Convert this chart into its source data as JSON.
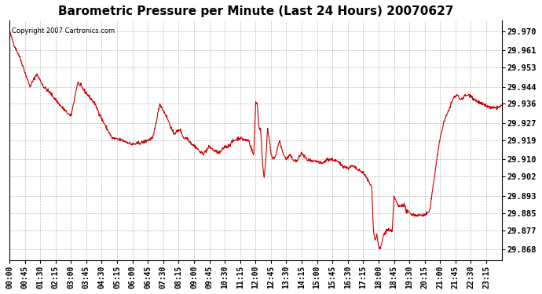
{
  "title": "Barometric Pressure per Minute (Last 24 Hours) 20070627",
  "copyright": "Copyright 2007 Cartronics.com",
  "line_color": "#cc0000",
  "bg_color": "#ffffff",
  "plot_bg_color": "#ffffff",
  "grid_color": "#aaaaaa",
  "yticks": [
    29.868,
    29.877,
    29.885,
    29.893,
    29.902,
    29.91,
    29.919,
    29.927,
    29.936,
    29.944,
    29.953,
    29.961,
    29.97
  ],
  "ylim": [
    29.863,
    29.975
  ],
  "xtick_labels": [
    "00:00",
    "00:45",
    "01:30",
    "02:15",
    "03:00",
    "03:45",
    "04:30",
    "05:15",
    "06:00",
    "06:45",
    "07:30",
    "08:15",
    "09:00",
    "09:45",
    "10:30",
    "11:15",
    "12:00",
    "12:45",
    "13:30",
    "14:15",
    "15:00",
    "15:45",
    "16:30",
    "17:15",
    "18:00",
    "18:45",
    "19:30",
    "20:15",
    "21:00",
    "21:45",
    "22:30",
    "23:15"
  ],
  "waypoints": [
    [
      0,
      29.97
    ],
    [
      15,
      29.963
    ],
    [
      30,
      29.958
    ],
    [
      60,
      29.944
    ],
    [
      80,
      29.95
    ],
    [
      100,
      29.944
    ],
    [
      120,
      29.941
    ],
    [
      150,
      29.935
    ],
    [
      180,
      29.93
    ],
    [
      200,
      29.946
    ],
    [
      230,
      29.94
    ],
    [
      250,
      29.936
    ],
    [
      270,
      29.929
    ],
    [
      300,
      29.92
    ],
    [
      330,
      29.919
    ],
    [
      360,
      29.917
    ],
    [
      390,
      29.918
    ],
    [
      420,
      29.92
    ],
    [
      440,
      29.936
    ],
    [
      460,
      29.93
    ],
    [
      480,
      29.922
    ],
    [
      500,
      29.924
    ],
    [
      510,
      29.92
    ],
    [
      520,
      29.92
    ],
    [
      535,
      29.917
    ],
    [
      545,
      29.916
    ],
    [
      560,
      29.913
    ],
    [
      570,
      29.913
    ],
    [
      585,
      29.916
    ],
    [
      600,
      29.914
    ],
    [
      615,
      29.913
    ],
    [
      630,
      29.916
    ],
    [
      640,
      29.916
    ],
    [
      650,
      29.918
    ],
    [
      660,
      29.919
    ],
    [
      670,
      29.92
    ],
    [
      675,
      29.92
    ],
    [
      690,
      29.919
    ],
    [
      700,
      29.919
    ],
    [
      710,
      29.914
    ],
    [
      715,
      29.912
    ],
    [
      720,
      29.937
    ],
    [
      725,
      29.936
    ],
    [
      730,
      29.925
    ],
    [
      735,
      29.924
    ],
    [
      740,
      29.91
    ],
    [
      745,
      29.901
    ],
    [
      750,
      29.91
    ],
    [
      755,
      29.924
    ],
    [
      760,
      29.92
    ],
    [
      765,
      29.913
    ],
    [
      770,
      29.91
    ],
    [
      780,
      29.912
    ],
    [
      790,
      29.919
    ],
    [
      800,
      29.913
    ],
    [
      810,
      29.91
    ],
    [
      820,
      29.912
    ],
    [
      830,
      29.91
    ],
    [
      840,
      29.909
    ],
    [
      855,
      29.913
    ],
    [
      870,
      29.91
    ],
    [
      885,
      29.909
    ],
    [
      900,
      29.909
    ],
    [
      915,
      29.908
    ],
    [
      930,
      29.91
    ],
    [
      945,
      29.91
    ],
    [
      960,
      29.909
    ],
    [
      975,
      29.907
    ],
    [
      990,
      29.906
    ],
    [
      1005,
      29.907
    ],
    [
      1020,
      29.905
    ],
    [
      1035,
      29.904
    ],
    [
      1050,
      29.9
    ],
    [
      1060,
      29.897
    ],
    [
      1065,
      29.877
    ],
    [
      1070,
      29.872
    ],
    [
      1075,
      29.875
    ],
    [
      1080,
      29.869
    ],
    [
      1085,
      29.868
    ],
    [
      1095,
      29.875
    ],
    [
      1105,
      29.877
    ],
    [
      1110,
      29.877
    ],
    [
      1120,
      29.876
    ],
    [
      1125,
      29.893
    ],
    [
      1135,
      29.889
    ],
    [
      1140,
      29.888
    ],
    [
      1155,
      29.889
    ],
    [
      1160,
      29.886
    ],
    [
      1170,
      29.885
    ],
    [
      1185,
      29.884
    ],
    [
      1200,
      29.884
    ],
    [
      1215,
      29.884
    ],
    [
      1230,
      29.886
    ],
    [
      1250,
      29.91
    ],
    [
      1260,
      29.92
    ],
    [
      1270,
      29.927
    ],
    [
      1275,
      29.929
    ],
    [
      1300,
      29.939
    ],
    [
      1310,
      29.94
    ],
    [
      1320,
      29.938
    ],
    [
      1335,
      29.94
    ],
    [
      1350,
      29.94
    ],
    [
      1360,
      29.938
    ],
    [
      1380,
      29.936
    ],
    [
      1395,
      29.935
    ],
    [
      1410,
      29.934
    ],
    [
      1425,
      29.934
    ],
    [
      1440,
      29.935
    ]
  ]
}
